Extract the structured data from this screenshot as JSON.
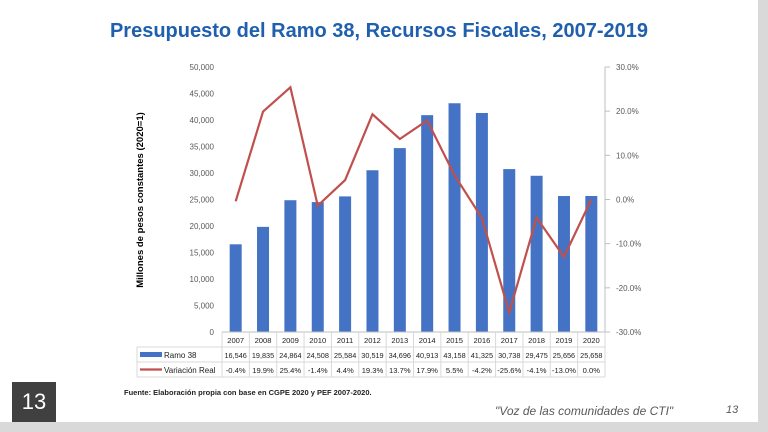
{
  "slide": {
    "number_badge": "13",
    "source": "Fuente: Elaboración propia con base en CGPE 2020 y PEF 2007-2020.",
    "quote": "\"Voz de las comunidades de CTI\"",
    "page_number": "13"
  },
  "chart_data": {
    "type": "bar+line",
    "title": "Presupuesto del Ramo 38, Recursos Fiscales, 2007-2019",
    "ylabel": "Millones de pesos constantes  (2020=1)",
    "ylim": [
      0,
      50000
    ],
    "y_ticks": [
      "0",
      "5,000",
      "10,000",
      "15,000",
      "20,000",
      "25,000",
      "30,000",
      "35,000",
      "40,000",
      "45,000",
      "50,000"
    ],
    "y2lim": [
      -30,
      30
    ],
    "y2_ticks": [
      "-30.0%",
      "-20.0%",
      "-10.0%",
      "0.0%",
      "10.0%",
      "20.0%",
      "30.0%"
    ],
    "categories": [
      "2007",
      "2008",
      "2009",
      "2010",
      "2011",
      "2012",
      "2013",
      "2014",
      "2015",
      "2016",
      "2017",
      "2018",
      "2019",
      "2020"
    ],
    "grid": false,
    "legend": "data-table",
    "series": [
      {
        "name": "Ramo 38",
        "type": "bar",
        "axis": "left",
        "color": "#4472c4",
        "values": [
          16546,
          19835,
          24864,
          24508,
          25584,
          30519,
          34696,
          40913,
          43158,
          41325,
          30738,
          29475,
          25656,
          25658
        ],
        "labels": [
          "16,546",
          "19,835",
          "24,864",
          "24,508",
          "25,584",
          "30,519",
          "34,696",
          "40,913",
          "43,158",
          "41,325",
          "30,738",
          "29,475",
          "25,656",
          "25,658"
        ]
      },
      {
        "name": "Variación Real",
        "type": "line",
        "axis": "right",
        "color": "#c0504d",
        "values": [
          -0.4,
          19.9,
          25.4,
          -1.4,
          4.4,
          19.3,
          13.7,
          17.9,
          5.5,
          -4.2,
          -25.6,
          -4.1,
          -13.0,
          0.0
        ],
        "labels": [
          "-0.4%",
          "19.9%",
          "25.4%",
          "-1.4%",
          "4.4%",
          "19.3%",
          "13.7%",
          "17.9%",
          "5.5%",
          "-4.2%",
          "-25.6%",
          "-4.1%",
          "-13.0%",
          "0.0%"
        ]
      }
    ]
  }
}
